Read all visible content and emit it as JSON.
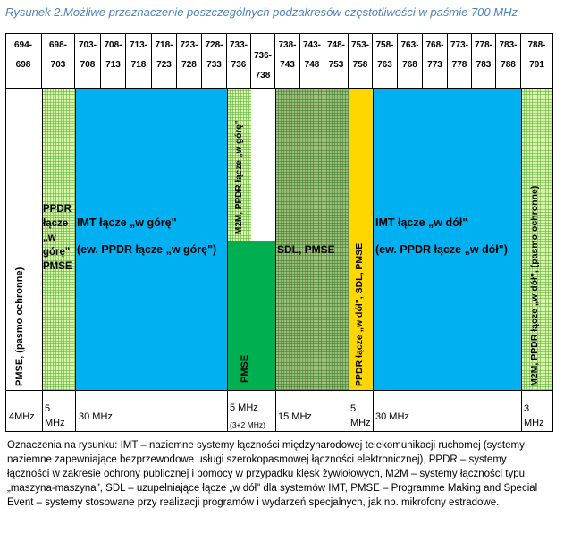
{
  "caption": "Rysunek 2.Możliwe przeznaczenie poszczególnych podzakresów częstotliwości w paśmie 700 MHz",
  "header_cells": [
    {
      "label": "694-\n698"
    },
    {
      "label": "698-\n703"
    },
    {
      "label": "703-\n708"
    },
    {
      "label": "708-\n713"
    },
    {
      "label": "713-\n718"
    },
    {
      "label": "718-\n723"
    },
    {
      "label": "723-\n728"
    },
    {
      "label": "728-\n733"
    },
    {
      "label": "733-\n736"
    },
    {
      "label": "736-\n738"
    },
    {
      "label": "738-\n743"
    },
    {
      "label": "743-\n748"
    },
    {
      "label": "748-\n753"
    },
    {
      "label": "753-\n758"
    },
    {
      "label": "758-\n763"
    },
    {
      "label": "763-\n768"
    },
    {
      "label": "768-\n773"
    },
    {
      "label": "773-\n778"
    },
    {
      "label": "778-\n783"
    },
    {
      "label": "783-\n788"
    },
    {
      "label": "788-\n791"
    }
  ],
  "bands": {
    "pmse_guard_left": "PMSE, (pasmo ochronne)",
    "ppdr_up": "PPDR\nłącze\n„w\ngórę\"\nPMSE",
    "imt_up_line1": "IMT łącze „w górę\"",
    "imt_up_line2": "(ew. PPDR łącze „w górę\")",
    "m2m_ppdr_up": "M2M, PPDR łącze „w górę\"",
    "pmse_center": "PMSE",
    "sdl_pmse": "SDL, PMSE",
    "ppdr_down_sdl": "PPDR łącze „w dół\", SDL, PMSE",
    "imt_down_line1": "IMT łącze „w dół\"",
    "imt_down_line2": "(ew. PPDR łącze „w dół\")",
    "m2m_ppdr_down": "M2M, PPDR łącze „w dół\", (pasmo ochronne)"
  },
  "widths": [
    {
      "label": "4MHz"
    },
    {
      "label": "5\nMHz"
    },
    {
      "label": "30 MHz"
    },
    {
      "label": "5 MHz",
      "sub": "(3+2 MHz)"
    },
    {
      "label": "15 MHz"
    },
    {
      "label": "5\nMHz"
    },
    {
      "label": "30 MHz"
    },
    {
      "label": "3\nMHz"
    }
  ],
  "legend": "Oznaczenia na rysunku: IMT – naziemne systemy łączności międzynarodowej telekomunikacji ruchomej (systemy naziemne zapewniające bezprzewodowe usługi szerokopasmowej łączności elektronicznej), PPDR – systemy łączności w zakresie ochrony publicznej i pomocy w przypadku klęsk żywiołowych, M2M – systemy łączności typu „maszyna-maszyna\", SDL – uzupełniające łącze „w dół\" dla systemów IMT, PMSE – Programme Making and Special Event – systemy stosowane przy realizacji programów i wydarzeń specjalnych, jak np. mikrofony estradowe.",
  "colors": {
    "imt": "#00b0f0",
    "pmse": "#00b050",
    "ppdr_down": "#ffd700",
    "hatch_light": "#d9f5a8",
    "hatch_dark": "#9ec07a",
    "caption": "#4f81bd"
  }
}
